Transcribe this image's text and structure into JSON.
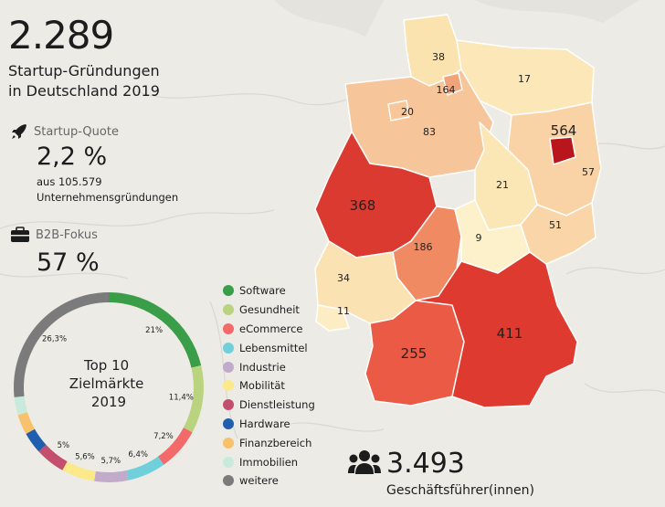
{
  "headline": {
    "value": "2.289",
    "line1": "Startup-Gründungen",
    "line2": "in Deutschland 2019"
  },
  "startup_quote": {
    "label": "Startup-Quote",
    "value": "2,2 %",
    "note1": "aus 105.579",
    "note2": "Unternehmensgründungen",
    "icon": "rocket-icon"
  },
  "b2b": {
    "label": "B2B-Fokus",
    "value": "57 %",
    "icon": "briefcase-icon"
  },
  "managers": {
    "value": "3.493",
    "label": "Geschäftsführer(innen)",
    "icon": "people-group-icon"
  },
  "map": {
    "color_scale": [
      "#fbe7b8",
      "#f7c79a",
      "#f19068",
      "#e5463a",
      "#cf2a24"
    ],
    "states": [
      {
        "name": "Schleswig-Holstein",
        "value": "38",
        "color": "#fbe3b0"
      },
      {
        "name": "Hamburg",
        "value": "164",
        "color": "#f1a37a"
      },
      {
        "name": "Mecklenburg-Vorpommern",
        "value": "17",
        "color": "#fbe7b8"
      },
      {
        "name": "Bremen",
        "value": "20",
        "color": "#f7c79a"
      },
      {
        "name": "Niedersachsen",
        "value": "83",
        "color": "#f7c59a"
      },
      {
        "name": "Berlin",
        "value": "564",
        "color": "#b8161c"
      },
      {
        "name": "Brandenburg",
        "value": "57",
        "color": "#f9d3a6"
      },
      {
        "name": "Sachsen-Anhalt",
        "value": "21",
        "color": "#fbe6b6"
      },
      {
        "name": "Nordrhein-Westfalen",
        "value": "368",
        "color": "#db3a30"
      },
      {
        "name": "Hessen",
        "value": "186",
        "color": "#f08a62"
      },
      {
        "name": "Thüringen",
        "value": "9",
        "color": "#fdf1cc"
      },
      {
        "name": "Sachsen",
        "value": "51",
        "color": "#f9d5a8"
      },
      {
        "name": "Rheinland-Pfalz",
        "value": "34",
        "color": "#fbe2b2"
      },
      {
        "name": "Saarland",
        "value": "11",
        "color": "#fcedc4"
      },
      {
        "name": "Baden-Württemberg",
        "value": "255",
        "color": "#ea5a44"
      },
      {
        "name": "Bayern",
        "value": "411",
        "color": "#de3a2f"
      }
    ]
  },
  "chart_data": {
    "type": "pie",
    "title": "Top 10 Zielmärkte 2019",
    "title_lines": [
      "Top 10",
      "Zielmärkte",
      "2019"
    ],
    "categories": [
      "Software",
      "Gesundheit",
      "eCommerce",
      "Lebensmittel",
      "Industrie",
      "Mobilität",
      "Dienstleistung",
      "Hardware",
      "Finanzbereich",
      "Immobilien",
      "weitere"
    ],
    "values": [
      21.0,
      11.4,
      7.2,
      6.4,
      5.7,
      5.6,
      5.0,
      3.6,
      3.4,
      3.0,
      26.3
    ],
    "labels": [
      "21%",
      "11,4%",
      "7,2%",
      "6,4%",
      "5,7%",
      "5,6%",
      "5%",
      "",
      "",
      "",
      "26,3%"
    ],
    "colors": [
      "#3a9e48",
      "#b9d37e",
      "#f26a6a",
      "#6fd0dc",
      "#c2aacb",
      "#fbe98a",
      "#c34e6e",
      "#1f5fae",
      "#f7c26b",
      "#c7eadc",
      "#7b7b7b"
    ],
    "legend": "right"
  }
}
